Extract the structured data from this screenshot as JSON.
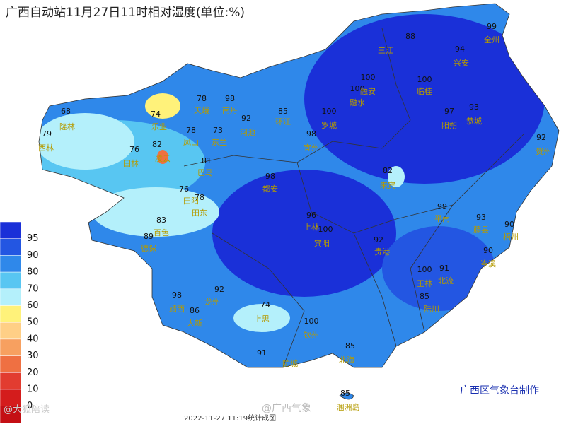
{
  "title": "广西自动站11月27日11时相对湿度(单位:%)",
  "legend": {
    "levels": [
      95,
      90,
      80,
      70,
      60,
      50,
      40,
      30,
      20,
      10,
      0
    ],
    "colors": [
      "#1a30d8",
      "#2356e2",
      "#2f88ea",
      "#58c6f2",
      "#b4f0fb",
      "#fff27a",
      "#ffcf86",
      "#f7a060",
      "#ef7042",
      "#e23c30",
      "#d41c1c",
      "#c40f14"
    ]
  },
  "stations": [
    {
      "name": "隆林",
      "value": 68
    },
    {
      "name": "西林",
      "value": 79
    },
    {
      "name": "田林",
      "value": 76
    },
    {
      "name": "乐业",
      "value": 74
    },
    {
      "name": "天峨",
      "value": 78
    },
    {
      "name": "南丹",
      "value": 98
    },
    {
      "name": "凤山",
      "value": 78
    },
    {
      "name": "东兰",
      "value": 73
    },
    {
      "name": "凌云",
      "value": 82
    },
    {
      "name": "巴马",
      "value": 81
    },
    {
      "name": "河池",
      "value": 92
    },
    {
      "name": "环江",
      "value": 85
    },
    {
      "name": "罗城",
      "value": 100
    },
    {
      "name": "融水",
      "value": 100
    },
    {
      "name": "融安",
      "value": 100
    },
    {
      "name": "三江",
      "value": 88
    },
    {
      "name": "全州",
      "value": 99
    },
    {
      "name": "兴安",
      "value": 94
    },
    {
      "name": "临桂",
      "value": 100
    },
    {
      "name": "阳朔",
      "value": 97
    },
    {
      "name": "恭城",
      "value": 93
    },
    {
      "name": "贺州",
      "value": 92
    },
    {
      "name": "宜州",
      "value": 98
    },
    {
      "name": "都安",
      "value": 98
    },
    {
      "name": "来宾",
      "value": 82
    },
    {
      "name": "田阳",
      "value": 76
    },
    {
      "name": "田东",
      "value": 78
    },
    {
      "name": "百色",
      "value": 83
    },
    {
      "name": "德保",
      "value": 89
    },
    {
      "name": "上林",
      "value": 96
    },
    {
      "name": "宾阳",
      "value": 100
    },
    {
      "name": "贵港",
      "value": 92
    },
    {
      "name": "平南",
      "value": 99
    },
    {
      "name": "藤县",
      "value": 93
    },
    {
      "name": "梧州",
      "value": 90
    },
    {
      "name": "岑溪",
      "value": 90
    },
    {
      "name": "玉林",
      "value": 100
    },
    {
      "name": "北流",
      "value": 91
    },
    {
      "name": "陆川",
      "value": 85
    },
    {
      "name": "钦州",
      "value": 100
    },
    {
      "name": "防城",
      "value": 91
    },
    {
      "name": "北海",
      "value": 85
    },
    {
      "name": "涠洲岛",
      "value": 85
    },
    {
      "name": "靖西",
      "value": 98
    },
    {
      "name": "龙州",
      "value": 92
    },
    {
      "name": "上思",
      "value": 74
    },
    {
      "name": "大新",
      "value": 86
    }
  ],
  "credit": "广西区气象台制作",
  "timestamp": "2022-11-27 11:19统计成图",
  "watermarks": [
    "@广西气象",
    "@大狐陪读"
  ]
}
